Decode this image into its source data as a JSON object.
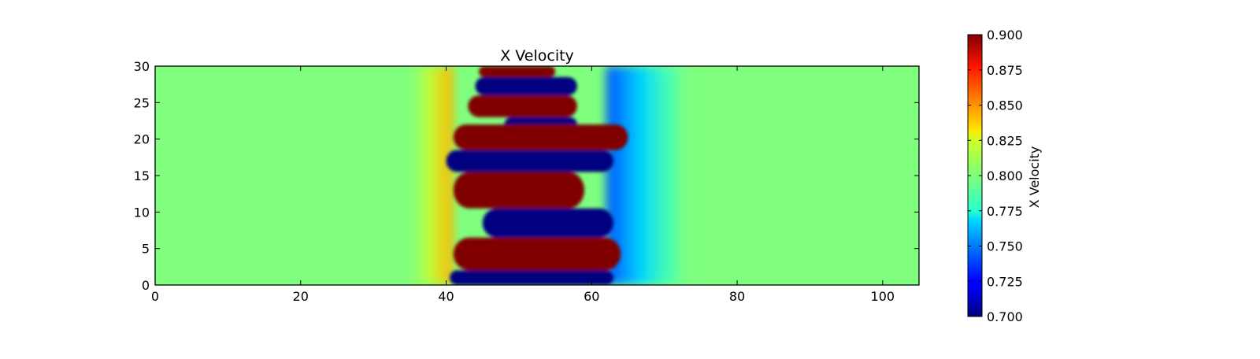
{
  "chart_data": {
    "type": "heatmap",
    "title": "X Velocity",
    "xlabel": "",
    "ylabel": "",
    "xlim": [
      0,
      105
    ],
    "ylim": [
      0,
      30
    ],
    "x_ticks": [
      0,
      20,
      40,
      60,
      80,
      100
    ],
    "y_ticks": [
      0,
      5,
      10,
      15,
      20,
      25,
      30
    ],
    "colormap": "jet",
    "background_value": 0.8,
    "colorbar": {
      "label": "X Velocity",
      "range": [
        0.7,
        0.9
      ],
      "ticks": [
        "0.700",
        "0.725",
        "0.750",
        "0.775",
        "0.800",
        "0.825",
        "0.850",
        "0.875",
        "0.900"
      ]
    },
    "field_regions": [
      {
        "value": 0.9,
        "x_range": [
          44.5,
          55
        ],
        "y_range": [
          28.5,
          30
        ]
      },
      {
        "value": 0.7,
        "x_range": [
          44,
          58
        ],
        "y_range": [
          26,
          28.5
        ]
      },
      {
        "value": 0.9,
        "x_range": [
          43,
          58
        ],
        "y_range": [
          23,
          26
        ]
      },
      {
        "value": 0.7,
        "x_range": [
          48,
          58
        ],
        "y_range": [
          21,
          23
        ]
      },
      {
        "value": 0.9,
        "x_range": [
          41,
          65
        ],
        "y_range": [
          18.5,
          22
        ]
      },
      {
        "value": 0.7,
        "x_range": [
          40,
          63
        ],
        "y_range": [
          15.5,
          18.5
        ]
      },
      {
        "value": 0.9,
        "x_range": [
          41,
          59
        ],
        "y_range": [
          10.5,
          15.5
        ]
      },
      {
        "value": 0.7,
        "x_range": [
          45,
          63
        ],
        "y_range": [
          6.5,
          10.5
        ]
      },
      {
        "value": 0.9,
        "x_range": [
          41,
          64
        ],
        "y_range": [
          2,
          6.5
        ]
      },
      {
        "value": 0.7,
        "x_range": [
          40.5,
          63
        ],
        "y_range": [
          0,
          2
        ]
      }
    ]
  }
}
